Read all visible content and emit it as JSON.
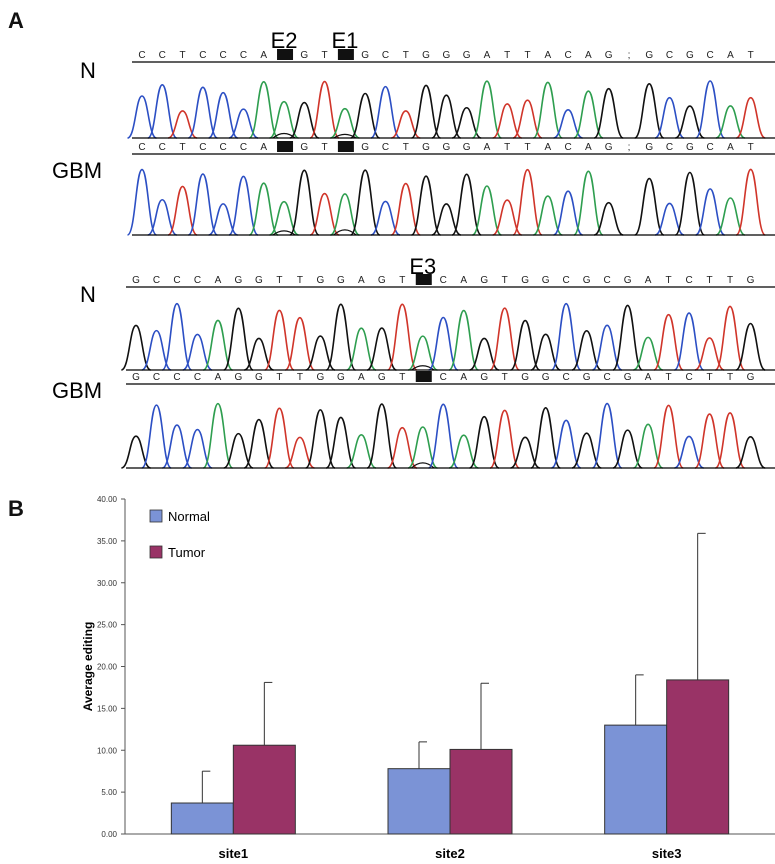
{
  "panelA": {
    "letter": "A",
    "tracks": [
      {
        "label": "N",
        "sequence": "CCTCCCA■GT■GCTGGGATTACAG;GCGCAT",
        "editLabels": [
          {
            "text": "E2",
            "base": 7
          },
          {
            "text": "E1",
            "base": 10
          }
        ]
      },
      {
        "label": "GBM",
        "sequence": "CCTCCCA■GT■GCTGGGATTACAG;GCGCAT",
        "editLabels": []
      },
      {
        "label": "N",
        "sequence": "GCCCAGGTTGGAGT■CAGTGGCGCGATCTTG",
        "editLabels": [
          {
            "text": "E3",
            "base": 14
          }
        ]
      },
      {
        "label": "GBM",
        "sequence": "GCCCAGGTTGGAGT■CAGTGGCGCGATCTTG",
        "editLabels": []
      }
    ],
    "baseColors": {
      "A": "#2e9e4f",
      "C": "#2c4fc4",
      "G": "#111111",
      "T": "#d0352a"
    }
  },
  "panelB": {
    "letter": "B"
  },
  "chart_data": {
    "type": "bar",
    "categories": [
      "site1",
      "site2",
      "site3"
    ],
    "series": [
      {
        "name": "Normal",
        "color": "#7b93d6",
        "values": [
          3.7,
          7.8,
          13.0
        ],
        "errors": [
          3.8,
          3.2,
          6.0
        ]
      },
      {
        "name": "Tumor",
        "color": "#993366",
        "values": [
          10.6,
          10.1,
          18.4
        ],
        "errors": [
          7.5,
          7.9,
          17.5
        ]
      }
    ],
    "ylabel": "Average editing",
    "xlabel": "",
    "title": "",
    "ylim": [
      0,
      40
    ],
    "yticks": [
      "0.00",
      "5.00",
      "10.00",
      "15.00",
      "20.00",
      "25.00",
      "30.00",
      "35.00",
      "40.00"
    ],
    "legend_position": "top-left",
    "grid": false
  }
}
